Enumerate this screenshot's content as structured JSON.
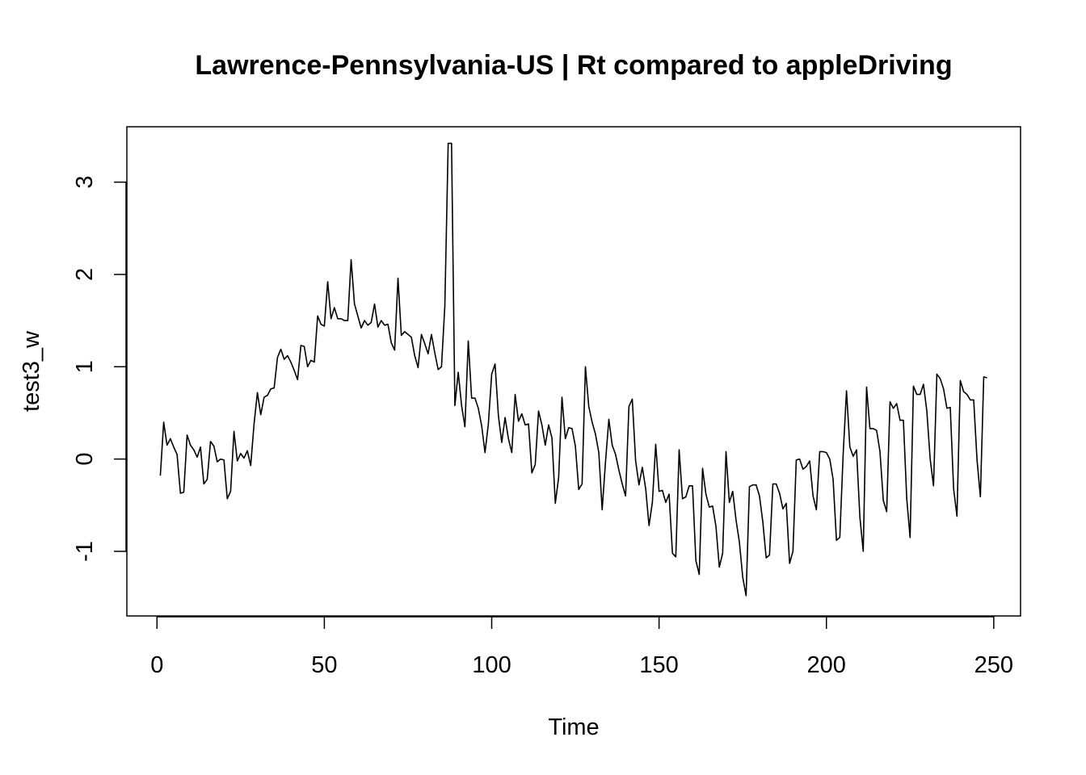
{
  "chart_data": {
    "type": "line",
    "title": "Lawrence-Pennsylvania-US | Rt compared to appleDriving",
    "xlabel": "Time",
    "ylabel": "test3_w",
    "xlim": [
      -9,
      258
    ],
    "ylim": [
      -1.7,
      3.6
    ],
    "xticks": [
      0,
      50,
      100,
      150,
      200,
      250
    ],
    "xtick_labels": [
      "0",
      "50",
      "100",
      "150",
      "200",
      "250"
    ],
    "yticks": [
      -1,
      0,
      1,
      2,
      3
    ],
    "ytick_labels": [
      "-1",
      "0",
      "1",
      "2",
      "3"
    ],
    "grid": false,
    "series": [
      {
        "x": [
          1,
          2,
          3,
          4,
          5,
          6,
          7,
          8,
          9,
          10,
          11,
          12,
          13,
          14,
          15,
          16,
          17,
          18,
          19,
          20,
          21,
          22,
          23,
          24,
          25,
          26,
          27,
          28,
          29,
          30,
          31,
          32,
          33,
          34,
          35,
          36,
          37,
          38,
          39,
          40,
          41,
          42,
          43,
          44,
          45,
          46,
          47,
          48,
          49,
          50,
          51,
          52,
          53,
          54,
          55,
          56,
          57,
          58,
          59,
          60,
          61,
          62,
          63,
          64,
          65,
          66,
          67,
          68,
          69,
          70,
          71,
          72,
          73,
          74,
          75,
          76,
          77,
          78,
          79,
          80,
          81,
          82,
          83,
          84,
          85,
          86,
          87,
          88,
          89,
          90,
          91,
          92,
          93,
          94,
          95,
          96,
          97,
          98,
          99,
          100,
          101,
          102,
          103,
          104,
          105,
          106,
          107,
          108,
          109,
          110,
          111,
          112,
          113,
          114,
          115,
          116,
          117,
          118,
          119,
          120,
          121,
          122,
          123,
          124,
          125,
          126,
          127,
          128,
          129,
          130,
          131,
          132,
          133,
          134,
          135,
          136,
          137,
          138,
          139,
          140,
          141,
          142,
          143,
          144,
          145,
          146,
          147,
          148,
          149,
          150,
          151,
          152,
          153,
          154,
          155,
          156,
          157,
          158,
          159,
          160,
          161,
          162,
          163,
          164,
          165,
          166,
          167,
          168,
          169,
          170,
          171,
          172,
          173,
          174,
          175,
          176,
          177,
          178,
          179,
          180,
          181,
          182,
          183,
          184,
          185,
          186,
          187,
          188,
          189,
          190,
          191,
          192,
          193,
          194,
          195,
          196,
          197,
          198,
          199,
          200,
          201,
          202,
          203,
          204,
          205,
          206,
          207,
          208,
          209,
          210,
          211,
          212,
          213,
          214,
          215,
          216,
          217,
          218,
          219,
          220,
          221,
          222,
          223,
          224,
          225,
          226,
          227,
          228,
          229,
          230,
          231,
          232,
          233,
          234,
          235,
          236,
          237,
          238,
          239,
          240,
          241,
          242,
          243,
          244,
          245,
          246,
          247,
          248
        ],
        "y": [
          -0.18,
          0.4,
          0.15,
          0.22,
          0.13,
          0.05,
          -0.37,
          -0.36,
          0.26,
          0.15,
          0.1,
          0.02,
          0.13,
          -0.27,
          -0.22,
          0.19,
          0.14,
          -0.03,
          0.0,
          -0.01,
          -0.43,
          -0.35,
          0.3,
          -0.02,
          0.06,
          0.01,
          0.09,
          -0.07,
          0.38,
          0.72,
          0.48,
          0.67,
          0.69,
          0.76,
          0.77,
          1.1,
          1.19,
          1.08,
          1.12,
          1.05,
          0.96,
          0.86,
          1.23,
          1.22,
          1.0,
          1.07,
          1.05,
          1.55,
          1.46,
          1.44,
          1.92,
          1.52,
          1.64,
          1.52,
          1.52,
          1.5,
          1.5,
          2.16,
          1.68,
          1.55,
          1.42,
          1.5,
          1.45,
          1.48,
          1.68,
          1.43,
          1.5,
          1.45,
          1.46,
          1.26,
          1.18,
          1.96,
          1.34,
          1.38,
          1.35,
          1.32,
          1.12,
          0.99,
          1.35,
          1.25,
          1.14,
          1.35,
          1.15,
          0.97,
          1.0,
          1.66,
          3.42,
          3.42,
          0.58,
          0.94,
          0.58,
          0.35,
          1.28,
          0.66,
          0.66,
          0.55,
          0.36,
          0.07,
          0.38,
          0.92,
          1.03,
          0.47,
          0.18,
          0.45,
          0.22,
          0.07,
          0.7,
          0.41,
          0.49,
          0.37,
          0.38,
          -0.15,
          -0.06,
          0.52,
          0.37,
          0.15,
          0.37,
          0.23,
          -0.48,
          -0.2,
          0.67,
          0.22,
          0.34,
          0.33,
          0.14,
          -0.33,
          -0.27,
          1.0,
          0.57,
          0.4,
          0.27,
          0.07,
          -0.55,
          -0.03,
          0.43,
          0.15,
          0.05,
          -0.12,
          -0.27,
          -0.4,
          0.57,
          0.65,
          -0.02,
          -0.28,
          -0.09,
          -0.32,
          -0.72,
          -0.47,
          0.16,
          -0.35,
          -0.34,
          -0.47,
          -0.38,
          -1.02,
          -1.06,
          0.1,
          -0.43,
          -0.41,
          -0.29,
          -0.29,
          -1.1,
          -1.25,
          -0.1,
          -0.38,
          -0.52,
          -0.51,
          -0.73,
          -1.17,
          -1.02,
          0.08,
          -0.47,
          -0.35,
          -0.66,
          -0.9,
          -1.28,
          -1.48,
          -0.3,
          -0.28,
          -0.28,
          -0.4,
          -0.68,
          -1.07,
          -1.04,
          -0.27,
          -0.27,
          -0.37,
          -0.54,
          -0.48,
          -1.13,
          -1.0,
          -0.01,
          0.0,
          -0.11,
          -0.08,
          -0.02,
          -0.4,
          -0.55,
          0.08,
          0.08,
          0.07,
          0.0,
          -0.22,
          -0.88,
          -0.85,
          0.05,
          0.74,
          0.13,
          0.03,
          0.1,
          -0.63,
          -1.0,
          0.78,
          0.33,
          0.33,
          0.31,
          0.08,
          -0.45,
          -0.57,
          0.62,
          0.55,
          0.6,
          0.42,
          0.42,
          -0.43,
          -0.85,
          0.79,
          0.7,
          0.7,
          0.81,
          0.52,
          0.0,
          -0.29,
          0.92,
          0.87,
          0.76,
          0.55,
          0.56,
          -0.32,
          -0.62,
          0.85,
          0.73,
          0.7,
          0.64,
          0.64,
          -0.01,
          -0.41,
          0.89,
          0.88
        ]
      }
    ]
  }
}
